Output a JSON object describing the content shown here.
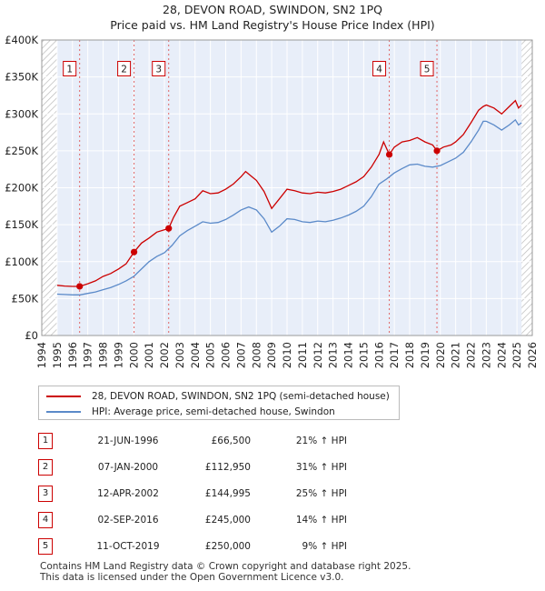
{
  "chart_data": {
    "type": "line",
    "title": "28, DEVON ROAD, SWINDON, SN2 1PQ",
    "subtitle": "Price paid vs. HM Land Registry's House Price Index (HPI)",
    "xlim": [
      1994,
      2026
    ],
    "ylim": [
      0,
      400000
    ],
    "x_ticks": [
      1994,
      1995,
      1996,
      1997,
      1998,
      1999,
      2000,
      2001,
      2002,
      2003,
      2004,
      2005,
      2006,
      2007,
      2008,
      2009,
      2010,
      2011,
      2012,
      2013,
      2014,
      2015,
      2016,
      2017,
      2018,
      2019,
      2020,
      2021,
      2022,
      2023,
      2024,
      2025,
      2026
    ],
    "y_ticks": [
      {
        "value": 0,
        "label": "£0"
      },
      {
        "value": 50000,
        "label": "£50K"
      },
      {
        "value": 100000,
        "label": "£100K"
      },
      {
        "value": 150000,
        "label": "£150K"
      },
      {
        "value": 200000,
        "label": "£200K"
      },
      {
        "value": 250000,
        "label": "£250K"
      },
      {
        "value": 300000,
        "label": "£300K"
      },
      {
        "value": 350000,
        "label": "£350K"
      },
      {
        "value": 400000,
        "label": "£400K"
      }
    ],
    "data_start": 1995,
    "data_end": 2025.3,
    "series": [
      {
        "name": "28, DEVON ROAD, SWINDON, SN2 1PQ (semi-detached house)",
        "color": "#cc0000",
        "points": [
          [
            1995,
            68000
          ],
          [
            1995.5,
            67000
          ],
          [
            1996,
            66500
          ],
          [
            1996.47,
            66500
          ],
          [
            1997,
            70000
          ],
          [
            1997.5,
            74000
          ],
          [
            1998,
            80000
          ],
          [
            1998.5,
            84000
          ],
          [
            1999,
            90000
          ],
          [
            1999.5,
            97000
          ],
          [
            2000.02,
            112950
          ],
          [
            2000.5,
            125000
          ],
          [
            2001,
            132000
          ],
          [
            2001.5,
            140000
          ],
          [
            2002.28,
            144995
          ],
          [
            2002.6,
            160000
          ],
          [
            2003,
            175000
          ],
          [
            2003.5,
            180000
          ],
          [
            2004,
            185000
          ],
          [
            2004.5,
            196000
          ],
          [
            2005,
            192000
          ],
          [
            2005.5,
            193000
          ],
          [
            2006,
            198000
          ],
          [
            2006.5,
            205000
          ],
          [
            2007,
            215000
          ],
          [
            2007.3,
            222000
          ],
          [
            2007.7,
            215000
          ],
          [
            2008,
            210000
          ],
          [
            2008.5,
            195000
          ],
          [
            2009,
            172000
          ],
          [
            2009.5,
            185000
          ],
          [
            2010,
            198000
          ],
          [
            2010.5,
            196000
          ],
          [
            2011,
            193000
          ],
          [
            2011.5,
            192000
          ],
          [
            2012,
            194000
          ],
          [
            2012.5,
            193000
          ],
          [
            2013,
            195000
          ],
          [
            2013.5,
            198000
          ],
          [
            2014,
            203000
          ],
          [
            2014.5,
            208000
          ],
          [
            2015,
            215000
          ],
          [
            2015.5,
            228000
          ],
          [
            2016,
            245000
          ],
          [
            2016.3,
            262000
          ],
          [
            2016.67,
            245000
          ],
          [
            2017,
            255000
          ],
          [
            2017.5,
            262000
          ],
          [
            2018,
            264000
          ],
          [
            2018.5,
            268000
          ],
          [
            2019,
            262000
          ],
          [
            2019.5,
            258000
          ],
          [
            2019.78,
            250000
          ],
          [
            2020.2,
            255000
          ],
          [
            2020.7,
            258000
          ],
          [
            2021,
            262000
          ],
          [
            2021.5,
            272000
          ],
          [
            2022,
            288000
          ],
          [
            2022.5,
            305000
          ],
          [
            2022.8,
            310000
          ],
          [
            2023,
            312000
          ],
          [
            2023.5,
            308000
          ],
          [
            2024,
            300000
          ],
          [
            2024.5,
            310000
          ],
          [
            2024.9,
            318000
          ],
          [
            2025.1,
            308000
          ],
          [
            2025.3,
            312000
          ]
        ]
      },
      {
        "name": "HPI: Average price, semi-detached house, Swindon",
        "color": "#5b8ac9",
        "points": [
          [
            1995,
            56000
          ],
          [
            1995.5,
            55500
          ],
          [
            1996,
            55000
          ],
          [
            1996.5,
            55000
          ],
          [
            1997,
            57000
          ],
          [
            1997.5,
            59000
          ],
          [
            1998,
            62000
          ],
          [
            1998.5,
            65000
          ],
          [
            1999,
            69000
          ],
          [
            1999.5,
            74000
          ],
          [
            2000,
            80000
          ],
          [
            2000.5,
            90000
          ],
          [
            2001,
            100000
          ],
          [
            2001.5,
            107000
          ],
          [
            2002,
            112000
          ],
          [
            2002.5,
            122000
          ],
          [
            2003,
            135000
          ],
          [
            2003.5,
            142000
          ],
          [
            2004,
            148000
          ],
          [
            2004.5,
            154000
          ],
          [
            2005,
            152000
          ],
          [
            2005.5,
            153000
          ],
          [
            2006,
            157000
          ],
          [
            2006.5,
            163000
          ],
          [
            2007,
            170000
          ],
          [
            2007.5,
            174000
          ],
          [
            2008,
            170000
          ],
          [
            2008.5,
            158000
          ],
          [
            2009,
            140000
          ],
          [
            2009.5,
            148000
          ],
          [
            2010,
            158000
          ],
          [
            2010.5,
            157000
          ],
          [
            2011,
            154000
          ],
          [
            2011.5,
            153000
          ],
          [
            2012,
            155000
          ],
          [
            2012.5,
            154000
          ],
          [
            2013,
            156000
          ],
          [
            2013.5,
            159000
          ],
          [
            2014,
            163000
          ],
          [
            2014.5,
            168000
          ],
          [
            2015,
            175000
          ],
          [
            2015.5,
            188000
          ],
          [
            2016,
            205000
          ],
          [
            2016.5,
            212000
          ],
          [
            2017,
            220000
          ],
          [
            2017.5,
            226000
          ],
          [
            2018,
            231000
          ],
          [
            2018.5,
            232000
          ],
          [
            2019,
            229000
          ],
          [
            2019.5,
            228000
          ],
          [
            2020,
            230000
          ],
          [
            2020.5,
            235000
          ],
          [
            2021,
            240000
          ],
          [
            2021.5,
            248000
          ],
          [
            2022,
            262000
          ],
          [
            2022.5,
            278000
          ],
          [
            2022.8,
            290000
          ],
          [
            2023,
            290000
          ],
          [
            2023.5,
            285000
          ],
          [
            2024,
            278000
          ],
          [
            2024.5,
            285000
          ],
          [
            2024.9,
            292000
          ],
          [
            2025.1,
            285000
          ],
          [
            2025.3,
            288000
          ]
        ]
      }
    ],
    "sales": [
      {
        "label": "1",
        "x": 1996.47,
        "price": 66500,
        "box_value": 360000
      },
      {
        "label": "2",
        "x": 2000.02,
        "price": 112950,
        "box_value": 360000
      },
      {
        "label": "3",
        "x": 2002.28,
        "price": 144995,
        "box_value": 360000
      },
      {
        "label": "4",
        "x": 2016.67,
        "price": 245000,
        "box_value": 360000
      },
      {
        "label": "5",
        "x": 2019.78,
        "price": 250000,
        "box_value": 360000
      }
    ]
  },
  "legend": {
    "red_label": "28, DEVON ROAD, SWINDON, SN2 1PQ (semi-detached house)",
    "blue_label": "HPI: Average price, semi-detached house, Swindon"
  },
  "table": [
    {
      "index": "1",
      "date": "21-JUN-1996",
      "price": "£66,500",
      "hpi": "21% ↑ HPI"
    },
    {
      "index": "2",
      "date": "07-JAN-2000",
      "price": "£112,950",
      "hpi": "31% ↑ HPI"
    },
    {
      "index": "3",
      "date": "12-APR-2002",
      "price": "£144,995",
      "hpi": "25% ↑ HPI"
    },
    {
      "index": "4",
      "date": "02-SEP-2016",
      "price": "£245,000",
      "hpi": "14% ↑ HPI"
    },
    {
      "index": "5",
      "date": "11-OCT-2019",
      "price": "£250,000",
      "hpi": "9% ↑ HPI"
    }
  ],
  "footer": {
    "line1": "Contains HM Land Registry data © Crown copyright and database right 2025.",
    "line2": "This data is licensed under the Open Government Licence v3.0."
  }
}
